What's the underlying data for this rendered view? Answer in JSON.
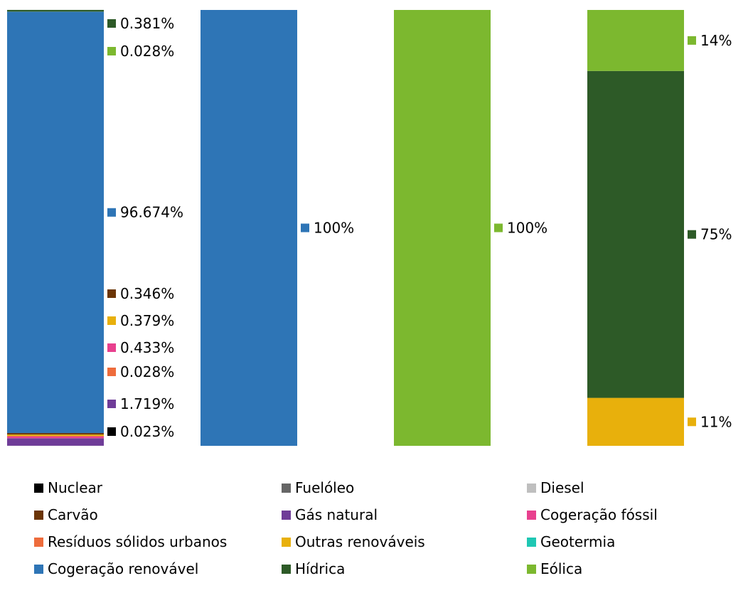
{
  "colors": {
    "Nuclear": "#000000",
    "Fuelóleo": "#666666",
    "Diesel": "#bfbfbf",
    "Carvão": "#6b3506",
    "Gás natural": "#6f3c98",
    "Cogeração fóssil": "#e8408e",
    "Resíduos sólidos urbanos": "#ee6c3c",
    "Outras renováveis": "#e8b00c",
    "Geotermia": "#1fc7b3",
    "Cogeração renovável": "#2e75b6",
    "Hídrica": "#2d5a27",
    "Eólica": "#7cb82f"
  },
  "legend": [
    {
      "label": "Nuclear",
      "key": "Nuclear"
    },
    {
      "label": "Fuelóleo",
      "key": "Fuelóleo"
    },
    {
      "label": "Diesel",
      "key": "Diesel"
    },
    {
      "label": "Carvão",
      "key": "Carvão"
    },
    {
      "label": "Gás natural",
      "key": "Gás natural"
    },
    {
      "label": "Cogeração fóssil",
      "key": "Cogeração fóssil"
    },
    {
      "label": "Resíduos sólidos urbanos",
      "key": "Resíduos sólidos urbanos"
    },
    {
      "label": "Outras renováveis",
      "key": "Outras renováveis"
    },
    {
      "label": "Geotermia",
      "key": "Geotermia"
    },
    {
      "label": "Cogeração renovável",
      "key": "Cogeração renovável"
    },
    {
      "label": "Hídrica",
      "key": "Hídrica"
    },
    {
      "label": "Eólica",
      "key": "Eólica"
    }
  ],
  "chart_data": {
    "type": "bar",
    "stacked": true,
    "ylim": [
      0,
      100
    ],
    "grid": false,
    "legend_position": "bottom",
    "columns": [
      {
        "segments": [
          {
            "series": "Nuclear",
            "value": 0.023,
            "label": "0.023%"
          },
          {
            "series": "Gás natural",
            "value": 1.719,
            "label": "1.719%"
          },
          {
            "series": "Resíduos sólidos urbanos",
            "value": 0.028,
            "label": "0.028%"
          },
          {
            "series": "Cogeração fóssil",
            "value": 0.433,
            "label": "0.433%"
          },
          {
            "series": "Outras renováveis",
            "value": 0.379,
            "label": "0.379%"
          },
          {
            "series": "Carvão",
            "value": 0.346,
            "label": "0.346%"
          },
          {
            "series": "Cogeração renovável",
            "value": 96.674,
            "label": "96.674%"
          },
          {
            "series": "Eólica",
            "value": 0.028,
            "label": "0.028%"
          },
          {
            "series": "Hídrica",
            "value": 0.381,
            "label": "0.381%"
          }
        ]
      },
      {
        "segments": [
          {
            "series": "Cogeração renovável",
            "value": 100,
            "label": "100%"
          }
        ]
      },
      {
        "segments": [
          {
            "series": "Eólica",
            "value": 100,
            "label": "100%"
          }
        ]
      },
      {
        "segments": [
          {
            "series": "Outras renováveis",
            "value": 11,
            "label": "11%"
          },
          {
            "series": "Hídrica",
            "value": 75,
            "label": "75%"
          },
          {
            "series": "Eólica",
            "value": 14,
            "label": "14%"
          }
        ]
      }
    ]
  }
}
